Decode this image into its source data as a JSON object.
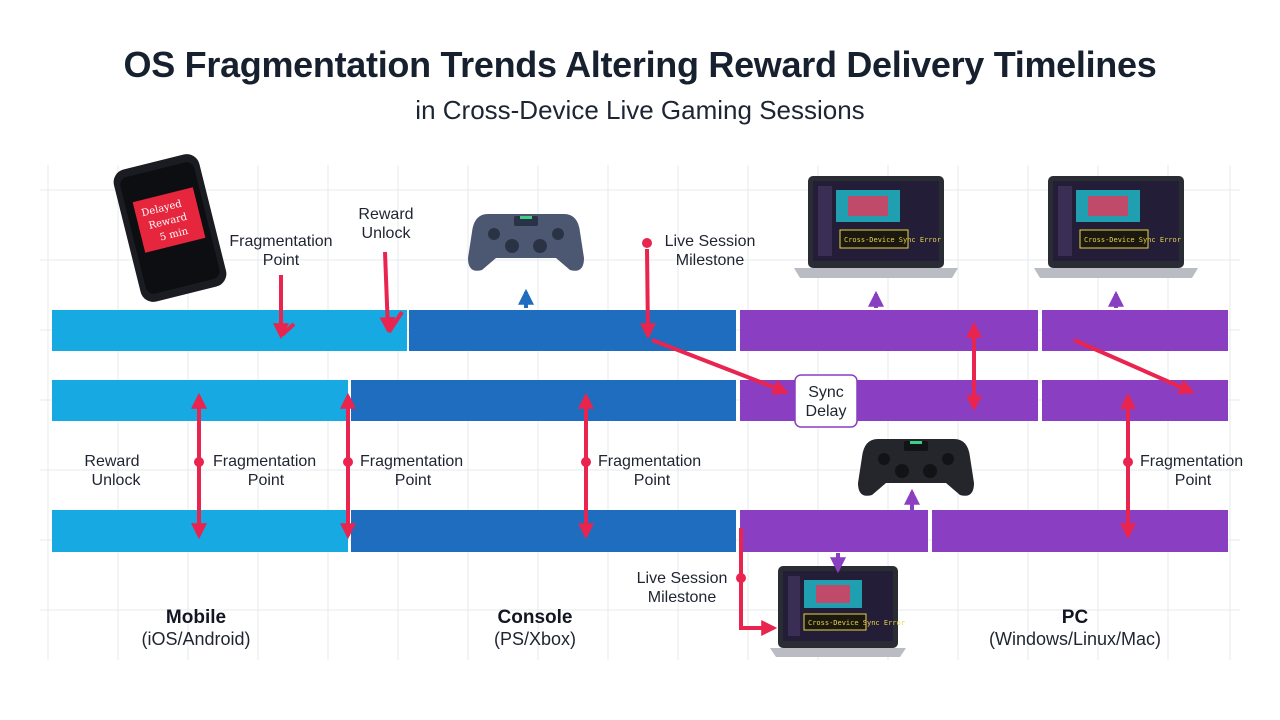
{
  "title": "OS Fragmentation Trends Altering Reward Delivery Timelines",
  "subtitle": "in Cross-Device Live Gaming Sessions",
  "colors": {
    "mobile": "#17a9e1",
    "console": "#1f6dbf",
    "pc": "#8a3fc2",
    "arrow": "#e8244f",
    "grid": "#e6e8ec"
  },
  "labels": {
    "fragmentation_point": [
      "Fragmentation",
      "Point"
    ],
    "reward_unlock": [
      "Reward",
      "Unlock"
    ],
    "live_session_milestone": [
      "Live Session",
      "Milestone"
    ],
    "sync_delay": [
      "Sync",
      "Delay"
    ]
  },
  "phone_screen": [
    "Delayed",
    "Reward",
    "5 min"
  ],
  "laptop_screen": "Cross-Device Sync Error",
  "platforms": [
    {
      "name": "Mobile",
      "sub": "(iOS/Android)"
    },
    {
      "name": "Console",
      "sub": "(PS/Xbox)"
    },
    {
      "name": "PC",
      "sub": "(Windows/Linux/Mac)"
    }
  ],
  "icons": [
    "smartphone-icon",
    "gamepad-icon",
    "laptop-icon"
  ]
}
